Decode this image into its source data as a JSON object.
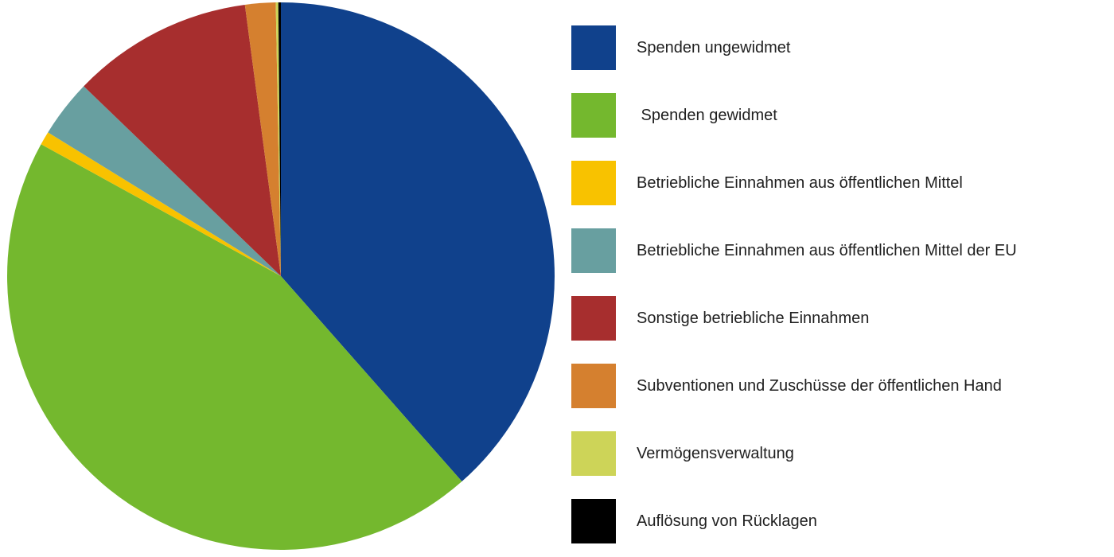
{
  "canvas": {
    "background": "#ffffff",
    "text_color": "#1f1f1f"
  },
  "chart_data": {
    "type": "pie",
    "title": "",
    "legend_position": "right",
    "start_angle_deg": 0,
    "direction": "clockwise",
    "slices": [
      {
        "label": "Spenden ungewidmet",
        "value_pct": 38.5,
        "color": "#10418c"
      },
      {
        "label": " Spenden gewidmet",
        "value_pct": 44.5,
        "color": "#74b82e"
      },
      {
        "label": "Betriebliche Einnahmen aus öffentlichen Mittel",
        "value_pct": 0.8,
        "color": "#f8c200"
      },
      {
        "label": "Betriebliche Einnahmen aus öffentlichen Mittel der EU",
        "value_pct": 3.4,
        "color": "#689fa0"
      },
      {
        "label": "Sonstige betriebliche Einnahmen",
        "value_pct": 10.7,
        "color": "#a72e2e"
      },
      {
        "label": "Subventionen und Zuschüsse der öffentlichen Hand",
        "value_pct": 1.8,
        "color": "#d5802f"
      },
      {
        "label": "Vermögensverwaltung",
        "value_pct": 0.15,
        "color": "#cdd458"
      },
      {
        "label": "Auflösung von Rücklagen",
        "value_pct": 0.15,
        "color": "#000000"
      }
    ]
  }
}
